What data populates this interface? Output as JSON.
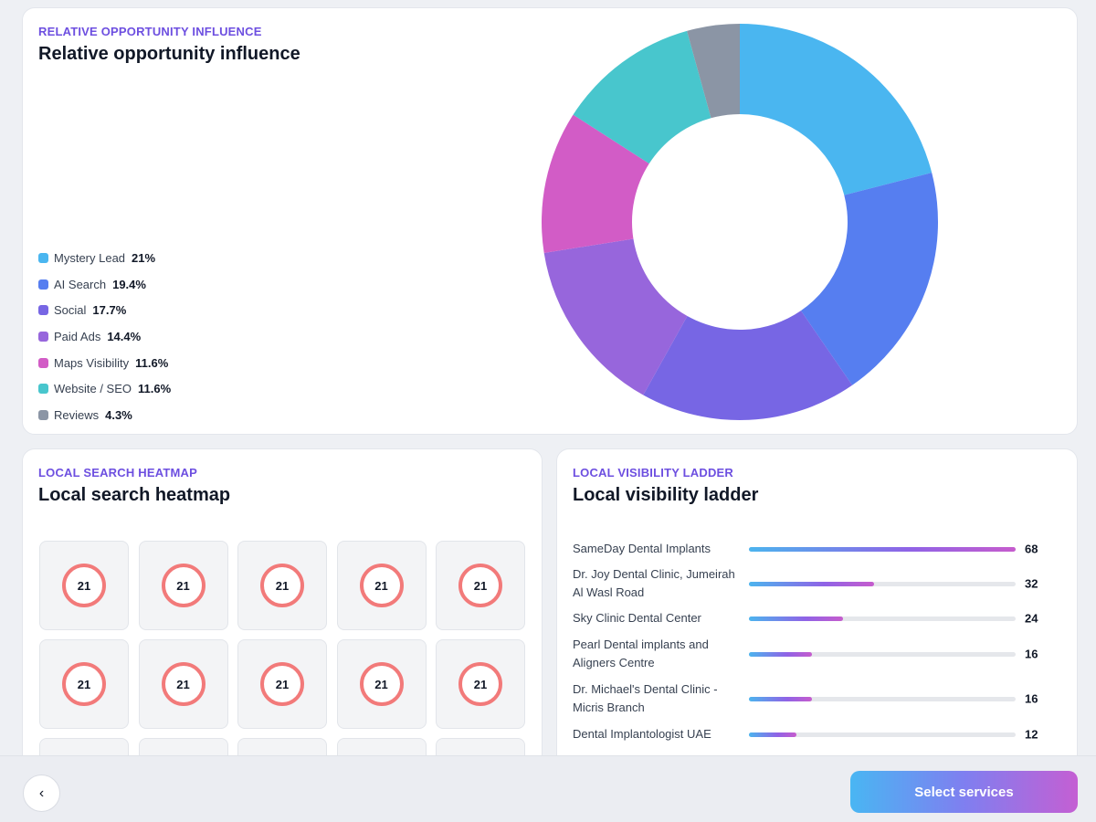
{
  "influence": {
    "eyebrow": "RELATIVE OPPORTUNITY INFLUENCE",
    "title": "Relative opportunity influence"
  },
  "chart_data": {
    "type": "pie",
    "donut": true,
    "categories": [
      "Mystery Lead",
      "AI Search",
      "Social",
      "Paid Ads",
      "Maps Visibility",
      "Website / SEO",
      "Reviews"
    ],
    "labels": [
      "21%",
      "19.4%",
      "17.7%",
      "14.4%",
      "11.6%",
      "11.6%",
      "4.3%"
    ],
    "values": [
      21,
      19.4,
      17.7,
      14.4,
      11.6,
      11.6,
      4.3
    ],
    "colors": [
      "#4ab6f0",
      "#567ef0",
      "#7766e4",
      "#9766dc",
      "#d25cc6",
      "#48c6cd",
      "#8b95a5"
    ],
    "legend": "left"
  },
  "heatmap": {
    "eyebrow": "LOCAL SEARCH HEATMAP",
    "title": "Local search heatmap",
    "rank_color": "#f27a7a",
    "cells": [
      "21",
      "21",
      "21",
      "21",
      "21",
      "21",
      "21",
      "21",
      "21",
      "21",
      "",
      "",
      "",
      "",
      ""
    ]
  },
  "ladder": {
    "eyebrow": "LOCAL VISIBILITY LADDER",
    "title": "Local visibility ladder",
    "max": 68,
    "rows": [
      {
        "name": "SameDay Dental Implants",
        "value": 68
      },
      {
        "name": "Dr. Joy Dental Clinic, Jumeirah Al Wasl Road",
        "value": 32
      },
      {
        "name": "Sky Clinic Dental Center",
        "value": 24
      },
      {
        "name": "Pearl Dental implants and Aligners Centre",
        "value": 16
      },
      {
        "name": "Dr. Michael's Dental Clinic - Micris Branch",
        "value": 16
      },
      {
        "name": "Dental Implantologist UAE",
        "value": 12
      }
    ]
  },
  "footer": {
    "back_label": "‹",
    "select_label": "Select services"
  }
}
